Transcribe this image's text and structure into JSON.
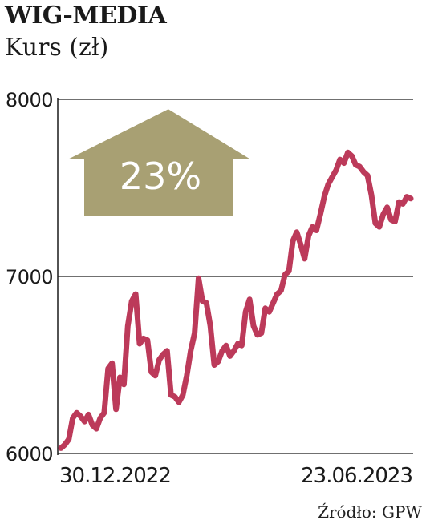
{
  "header": {
    "title": "WIG-MEDIA",
    "subtitle": "Kurs (zł)"
  },
  "source": "Źródło: GPW",
  "colors": {
    "line": "#bc3a5a",
    "badge": "#a8a073",
    "badge_text": "#ffffff",
    "grid": "#1a1a1a"
  },
  "badge": {
    "label": "23%",
    "icon": "up-arrow-icon"
  },
  "chart_data": {
    "type": "line",
    "title": "WIG-MEDIA",
    "ylabel": "Kurs (zł)",
    "xlabel": "",
    "ylim": [
      6000,
      8000
    ],
    "yticks": [
      6000,
      7000,
      8000
    ],
    "x_start_label": "30.12.2022",
    "x_end_label": "23.06.2023",
    "grid": true,
    "series": [
      {
        "values": [
          6030,
          6050,
          6080,
          6200,
          6230,
          6210,
          6180,
          6220,
          6160,
          6140,
          6200,
          6230,
          6480,
          6510,
          6250,
          6430,
          6390,
          6720,
          6860,
          6900,
          6620,
          6650,
          6640,
          6460,
          6440,
          6530,
          6560,
          6580,
          6330,
          6320,
          6290,
          6330,
          6440,
          6580,
          6680,
          6990,
          6860,
          6850,
          6720,
          6500,
          6520,
          6580,
          6610,
          6550,
          6580,
          6620,
          6610,
          6800,
          6870,
          6720,
          6670,
          6680,
          6820,
          6800,
          6850,
          6900,
          6920,
          7010,
          7030,
          7200,
          7250,
          7180,
          7100,
          7230,
          7280,
          7260,
          7350,
          7450,
          7520,
          7560,
          7600,
          7660,
          7640,
          7700,
          7680,
          7630,
          7620,
          7590,
          7570,
          7460,
          7300,
          7280,
          7350,
          7390,
          7320,
          7310,
          7420,
          7410,
          7450,
          7440
        ]
      }
    ]
  }
}
